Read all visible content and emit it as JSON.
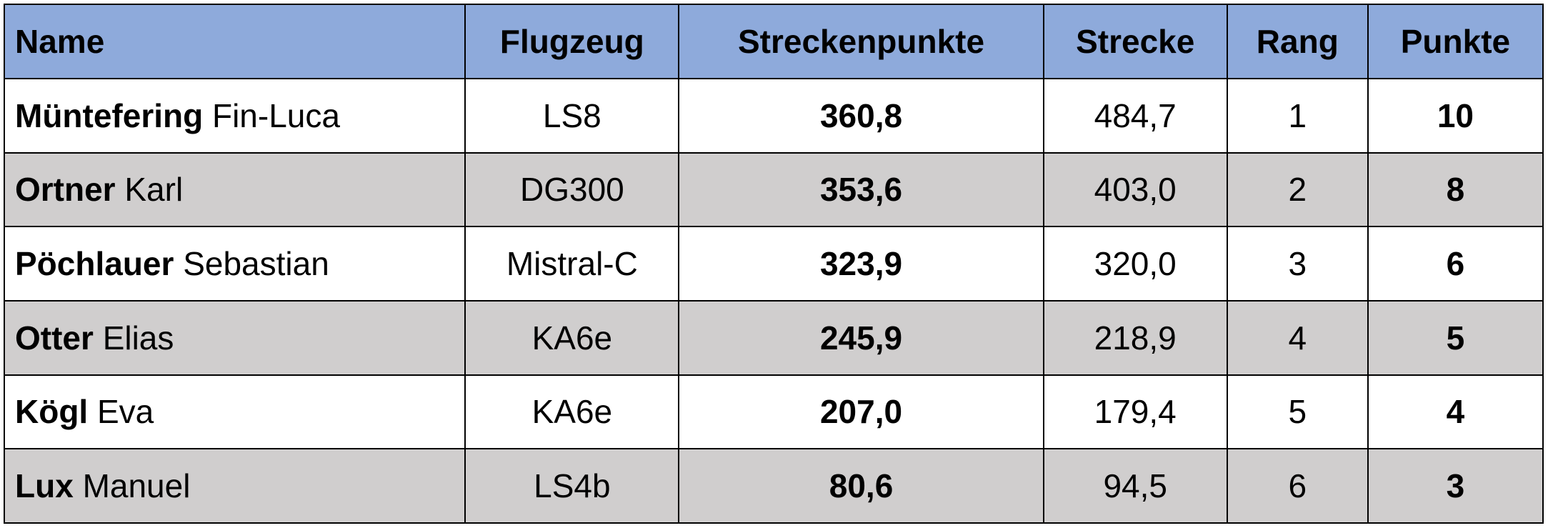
{
  "table": {
    "header": [
      "Name",
      "Flugzeug",
      "Streckenpunkte",
      "Strecke",
      "Rang",
      "Punkte"
    ],
    "rows": [
      {
        "surname": "Müntefering",
        "firstname": "Fin-Luca",
        "aircraft": "LS8",
        "streckenpunkte": "360,8",
        "strecke": "484,7",
        "rang": "1",
        "punkte": "10"
      },
      {
        "surname": "Ortner",
        "firstname": "Karl",
        "aircraft": "DG300",
        "streckenpunkte": "353,6",
        "strecke": "403,0",
        "rang": "2",
        "punkte": "8"
      },
      {
        "surname": "Pöchlauer",
        "firstname": "Sebastian",
        "aircraft": "Mistral-C",
        "streckenpunkte": "323,9",
        "strecke": "320,0",
        "rang": "3",
        "punkte": "6"
      },
      {
        "surname": "Otter",
        "firstname": "Elias",
        "aircraft": "KA6e",
        "streckenpunkte": "245,9",
        "strecke": "218,9",
        "rang": "4",
        "punkte": "5"
      },
      {
        "surname": "Kögl",
        "firstname": "Eva",
        "aircraft": "KA6e",
        "streckenpunkte": "207,0",
        "strecke": "179,4",
        "rang": "5",
        "punkte": "4"
      },
      {
        "surname": "Lux",
        "firstname": "Manuel",
        "aircraft": "LS4b",
        "streckenpunkte": "80,6",
        "strecke": "94,5",
        "rang": "6",
        "punkte": "3"
      }
    ]
  }
}
